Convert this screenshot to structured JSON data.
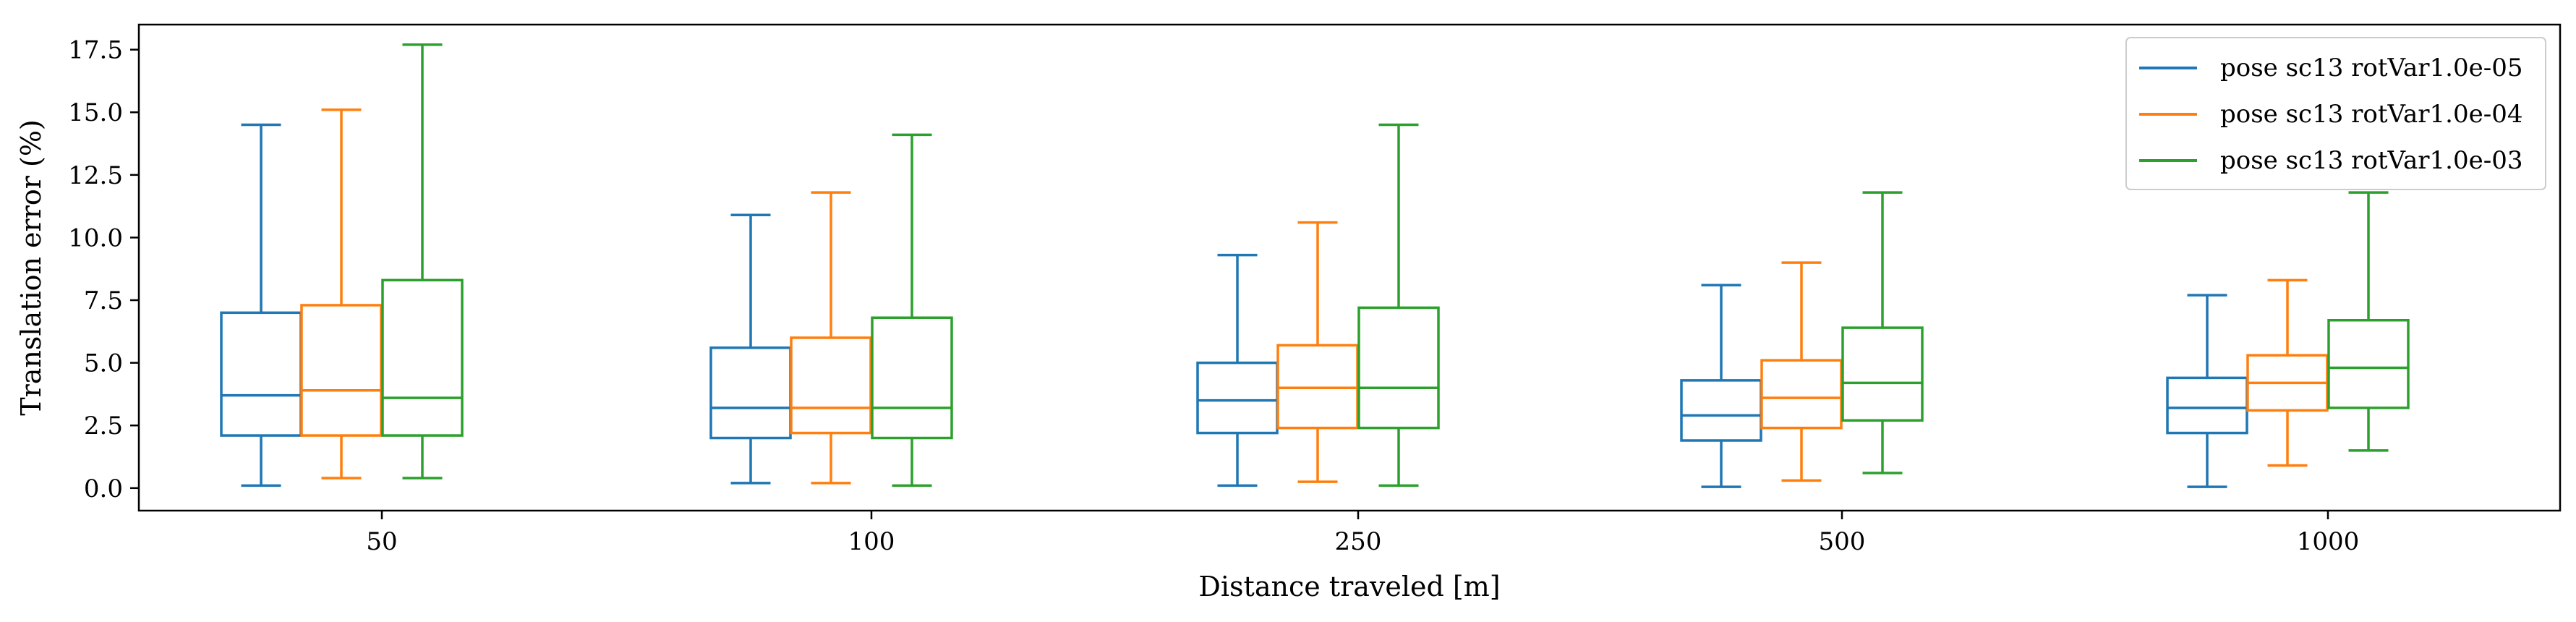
{
  "chart_data": {
    "type": "boxplot",
    "xlabel": "Distance traveled [m]",
    "ylabel": "Translation error (%)",
    "categories": [
      "50",
      "100",
      "250",
      "500",
      "1000"
    ],
    "ylim": [
      -0.9,
      18.5
    ],
    "yticks": [
      0.0,
      2.5,
      5.0,
      7.5,
      10.0,
      12.5,
      15.0,
      17.5
    ],
    "ytick_labels": [
      "0.0",
      "2.5",
      "5.0",
      "7.5",
      "10.0",
      "12.5",
      "15.0",
      "17.5"
    ],
    "grid": false,
    "legend_position": "top-right",
    "series": [
      {
        "name": "pose sc13 rotVar1.0e-05",
        "color": "#1f77b4",
        "boxes": [
          {
            "whislo": 0.1,
            "q1": 2.1,
            "med": 3.7,
            "q3": 7.0,
            "whishi": 14.5
          },
          {
            "whislo": 0.2,
            "q1": 2.0,
            "med": 3.2,
            "q3": 5.6,
            "whishi": 10.9
          },
          {
            "whislo": 0.1,
            "q1": 2.2,
            "med": 3.5,
            "q3": 5.0,
            "whishi": 9.3
          },
          {
            "whislo": 0.05,
            "q1": 1.9,
            "med": 2.9,
            "q3": 4.3,
            "whishi": 8.1
          },
          {
            "whislo": 0.05,
            "q1": 2.2,
            "med": 3.2,
            "q3": 4.4,
            "whishi": 7.7
          }
        ]
      },
      {
        "name": "pose sc13 rotVar1.0e-04",
        "color": "#ff7f0e",
        "boxes": [
          {
            "whislo": 0.4,
            "q1": 2.1,
            "med": 3.9,
            "q3": 7.3,
            "whishi": 15.1
          },
          {
            "whislo": 0.2,
            "q1": 2.2,
            "med": 3.2,
            "q3": 6.0,
            "whishi": 11.8
          },
          {
            "whislo": 0.25,
            "q1": 2.4,
            "med": 4.0,
            "q3": 5.7,
            "whishi": 10.6
          },
          {
            "whislo": 0.3,
            "q1": 2.4,
            "med": 3.6,
            "q3": 5.1,
            "whishi": 9.0
          },
          {
            "whislo": 0.9,
            "q1": 3.1,
            "med": 4.2,
            "q3": 5.3,
            "whishi": 8.3
          }
        ]
      },
      {
        "name": "pose sc13 rotVar1.0e-03",
        "color": "#2ca02c",
        "boxes": [
          {
            "whislo": 0.4,
            "q1": 2.1,
            "med": 3.6,
            "q3": 8.3,
            "whishi": 17.7
          },
          {
            "whislo": 0.1,
            "q1": 2.0,
            "med": 3.2,
            "q3": 6.8,
            "whishi": 14.1
          },
          {
            "whislo": 0.1,
            "q1": 2.4,
            "med": 4.0,
            "q3": 7.2,
            "whishi": 14.5
          },
          {
            "whislo": 0.6,
            "q1": 2.7,
            "med": 4.2,
            "q3": 6.4,
            "whishi": 11.8
          },
          {
            "whislo": 1.5,
            "q1": 3.2,
            "med": 4.8,
            "q3": 6.7,
            "whishi": 11.8
          }
        ]
      }
    ]
  }
}
